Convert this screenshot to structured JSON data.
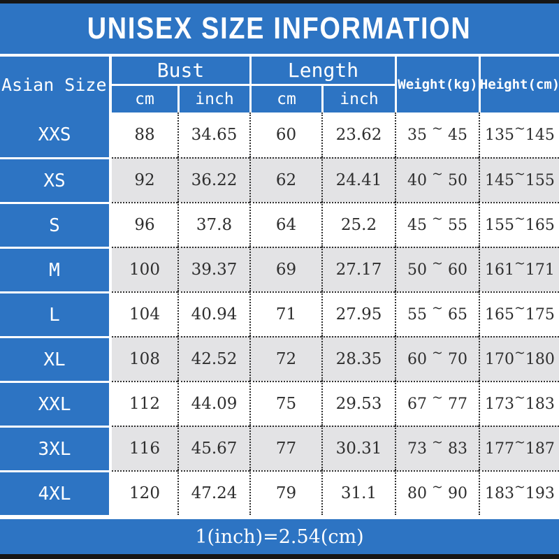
{
  "title": "UNISEX SIZE INFORMATION",
  "table": {
    "corner_label": "Asian Size",
    "groups": {
      "bust": "Bust",
      "length": "Length"
    },
    "units": {
      "cm": "cm",
      "inch": "inch"
    },
    "weight_label": "Weight(kg)",
    "height_label": "Height(cm)",
    "tilde": "~"
  },
  "rows": [
    {
      "size": "XXS",
      "bust_cm": "88",
      "bust_inch": "34.65",
      "length_cm": "60",
      "length_inch": "23.62",
      "weight_min": "35",
      "weight_max": "45",
      "height_min": "135",
      "height_max": "145"
    },
    {
      "size": "XS",
      "bust_cm": "92",
      "bust_inch": "36.22",
      "length_cm": "62",
      "length_inch": "24.41",
      "weight_min": "40",
      "weight_max": "50",
      "height_min": "145",
      "height_max": "155"
    },
    {
      "size": "S",
      "bust_cm": "96",
      "bust_inch": "37.8",
      "length_cm": "64",
      "length_inch": "25.2",
      "weight_min": "45",
      "weight_max": "55",
      "height_min": "155",
      "height_max": "165"
    },
    {
      "size": "M",
      "bust_cm": "100",
      "bust_inch": "39.37",
      "length_cm": "69",
      "length_inch": "27.17",
      "weight_min": "50",
      "weight_max": "60",
      "height_min": "161",
      "height_max": "171"
    },
    {
      "size": "L",
      "bust_cm": "104",
      "bust_inch": "40.94",
      "length_cm": "71",
      "length_inch": "27.95",
      "weight_min": "55",
      "weight_max": "65",
      "height_min": "165",
      "height_max": "175"
    },
    {
      "size": "XL",
      "bust_cm": "108",
      "bust_inch": "42.52",
      "length_cm": "72",
      "length_inch": "28.35",
      "weight_min": "60",
      "weight_max": "70",
      "height_min": "170",
      "height_max": "180"
    },
    {
      "size": "XXL",
      "bust_cm": "112",
      "bust_inch": "44.09",
      "length_cm": "75",
      "length_inch": "29.53",
      "weight_min": "67",
      "weight_max": "77",
      "height_min": "173",
      "height_max": "183"
    },
    {
      "size": "3XL",
      "bust_cm": "116",
      "bust_inch": "45.67",
      "length_cm": "77",
      "length_inch": "30.31",
      "weight_min": "73",
      "weight_max": "83",
      "height_min": "177",
      "height_max": "187"
    },
    {
      "size": "4XL",
      "bust_cm": "120",
      "bust_inch": "47.24",
      "length_cm": "79",
      "length_inch": "31.1",
      "weight_min": "80",
      "weight_max": "90",
      "height_min": "183",
      "height_max": "193"
    }
  ],
  "footer_note": "1(inch)=2.54(cm)",
  "colors": {
    "accent_blue": "#2d74c3",
    "alt_row_gray": "#e3e3e5",
    "text_dark": "#2e2e2e",
    "border_black": "#161616",
    "header_text": "#ffffff"
  },
  "chart_data": {
    "type": "table",
    "title": "UNISEX SIZE INFORMATION",
    "columns": [
      "Asian Size",
      "Bust cm",
      "Bust inch",
      "Length cm",
      "Length inch",
      "Weight(kg)",
      "Height(cm)"
    ],
    "rows": [
      [
        "XXS",
        88,
        34.65,
        60,
        23.62,
        "35~45",
        "135~145"
      ],
      [
        "XS",
        92,
        36.22,
        62,
        24.41,
        "40~50",
        "145~155"
      ],
      [
        "S",
        96,
        37.8,
        64,
        25.2,
        "45~55",
        "155~165"
      ],
      [
        "M",
        100,
        39.37,
        69,
        27.17,
        "50~60",
        "161~171"
      ],
      [
        "L",
        104,
        40.94,
        71,
        27.95,
        "55~65",
        "165~175"
      ],
      [
        "XL",
        108,
        42.52,
        72,
        28.35,
        "60~70",
        "170~180"
      ],
      [
        "XXL",
        112,
        44.09,
        75,
        29.53,
        "67~77",
        "173~183"
      ],
      [
        "3XL",
        116,
        45.67,
        77,
        30.31,
        "73~83",
        "177~187"
      ],
      [
        "4XL",
        120,
        47.24,
        79,
        31.1,
        "80~90",
        "183~193"
      ]
    ],
    "footnote": "1(inch)=2.54(cm)"
  }
}
